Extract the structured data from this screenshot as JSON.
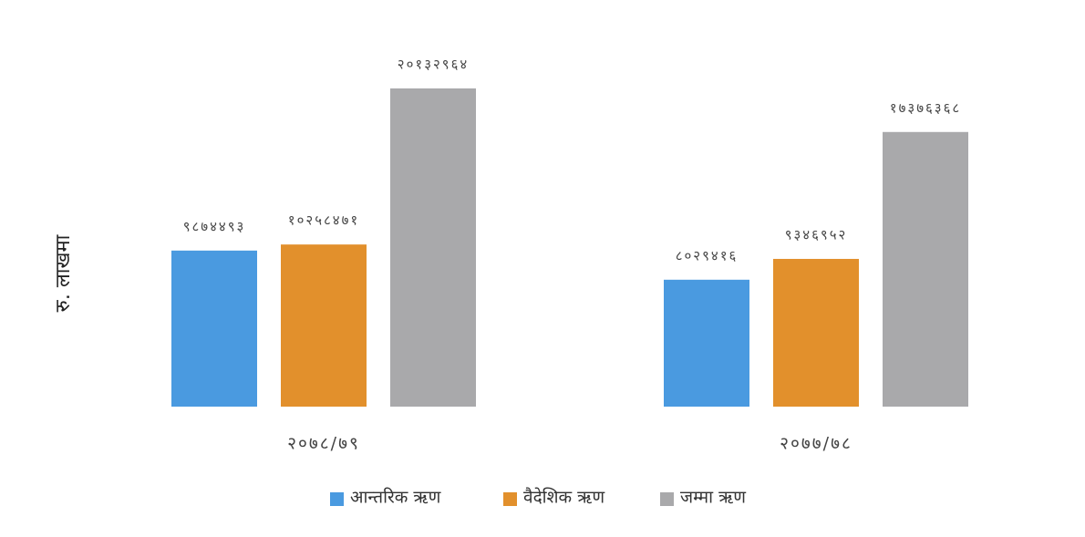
{
  "chart_data": {
    "type": "bar",
    "y_label": "रु. लाखमा",
    "categories": [
      "२०७८/७९",
      "२०७७/७८"
    ],
    "series": [
      {
        "name": "आन्तरिक ऋण",
        "color": "#4a9ae0",
        "values": [
          9874493,
          8029416
        ],
        "value_labels": [
          "९८७४४९३",
          "८०२९४१६"
        ]
      },
      {
        "name": "वैदेशिक ऋण",
        "color": "#e2902c",
        "values": [
          10258471,
          9346952
        ],
        "value_labels": [
          "१०२५८४७१",
          "९३४६९५२"
        ]
      },
      {
        "name": "जम्मा ऋण",
        "color": "#a9a9ab",
        "values": [
          20132964,
          17376368
        ],
        "value_labels": [
          "२०१३२९६४",
          "१७३७६३६८"
        ]
      }
    ]
  }
}
